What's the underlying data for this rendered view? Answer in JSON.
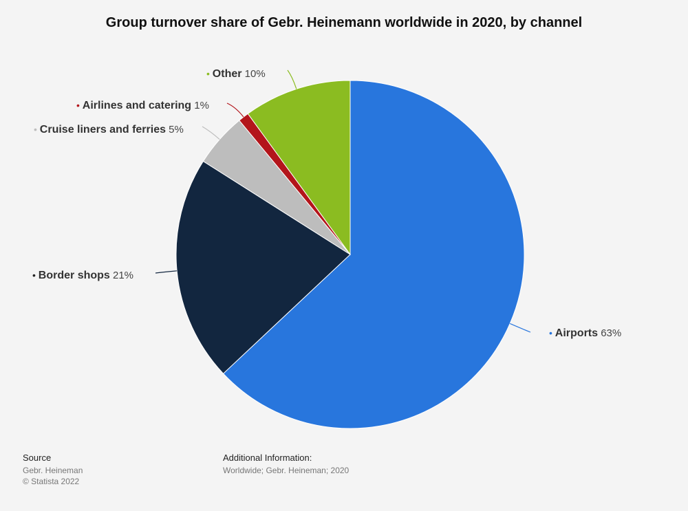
{
  "chart_data": {
    "type": "pie",
    "title": "Group turnover share of Gebr. Heinemann worldwide in 2020, by channel",
    "categories": [
      "Airports",
      "Border shops",
      "Cruise liners and ferries",
      "Airlines and catering",
      "Other"
    ],
    "values": [
      63,
      21,
      5,
      1,
      10
    ],
    "value_labels": [
      "63%",
      "21%",
      "5%",
      "1%",
      "10%"
    ],
    "colors": [
      "#2876dd",
      "#12263f",
      "#bdbdbd",
      "#b3151b",
      "#8bbc21"
    ],
    "start_angle_deg": 0,
    "direction": "clockwise",
    "legend": "none (labels on leader lines)"
  },
  "footer": {
    "source_heading": "Source",
    "source_lines": [
      "Gebr. Heineman",
      "© Statista 2022"
    ],
    "info_heading": "Additional Information:",
    "info_lines": [
      "Worldwide; Gebr. Heineman; 2020"
    ]
  }
}
